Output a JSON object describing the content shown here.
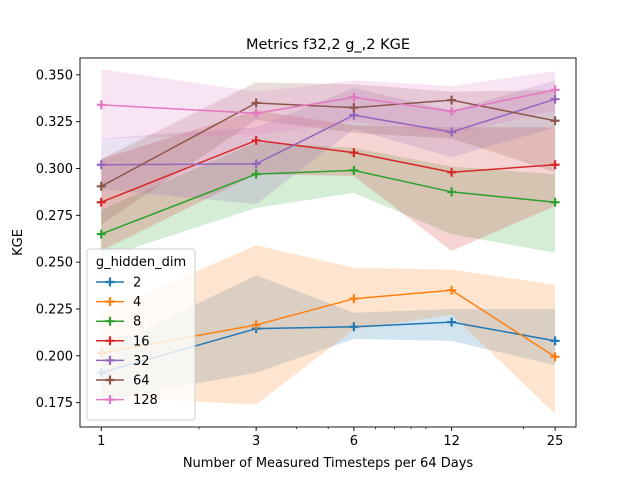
{
  "chart_data": {
    "type": "line",
    "title": "Metrics f32,2 g_,2 KGE",
    "xlabel": "Number of Measured Timesteps per 64 Days",
    "ylabel": "KGE",
    "x_scale": "log",
    "x": [
      1,
      3,
      6,
      12,
      25
    ],
    "x_tick_labels": [
      "1",
      "3",
      "6",
      "12",
      "25"
    ],
    "ylim": [
      0.162,
      0.359
    ],
    "y_ticks": [
      0.175,
      0.2,
      0.225,
      0.25,
      0.275,
      0.3,
      0.325,
      0.35
    ],
    "y_tick_labels": [
      "0.175",
      "0.200",
      "0.225",
      "0.250",
      "0.275",
      "0.300",
      "0.325",
      "0.350"
    ],
    "grid": false,
    "legend": {
      "title": "g_hidden_dim",
      "placement": "lower-left"
    },
    "series": [
      {
        "name": "2",
        "color": "#1f77b4",
        "values": [
          0.191,
          0.2145,
          0.2155,
          0.218,
          0.208
        ],
        "lower": [
          0.176,
          0.191,
          0.209,
          0.208,
          0.195
        ],
        "upper": [
          0.203,
          0.243,
          0.223,
          0.225,
          0.225
        ]
      },
      {
        "name": "4",
        "color": "#ff7f0e",
        "values": [
          0.2015,
          0.2165,
          0.2305,
          0.235,
          0.1995
        ],
        "lower": [
          0.178,
          0.174,
          0.214,
          0.222,
          0.169
        ],
        "upper": [
          0.223,
          0.259,
          0.247,
          0.246,
          0.238
        ]
      },
      {
        "name": "8",
        "color": "#2ca02c",
        "values": [
          0.265,
          0.297,
          0.299,
          0.2875,
          0.282
        ],
        "lower": [
          0.252,
          0.279,
          0.287,
          0.265,
          0.255
        ],
        "upper": [
          0.278,
          0.314,
          0.311,
          0.301,
          0.297
        ]
      },
      {
        "name": "16",
        "color": "#d62728",
        "values": [
          0.282,
          0.315,
          0.3085,
          0.298,
          0.302
        ],
        "lower": [
          0.256,
          0.297,
          0.296,
          0.256,
          0.28
        ],
        "upper": [
          0.305,
          0.331,
          0.323,
          0.322,
          0.322
        ]
      },
      {
        "name": "32",
        "color": "#9467bd",
        "values": [
          0.302,
          0.3025,
          0.3285,
          0.3195,
          0.337
        ],
        "lower": [
          0.289,
          0.281,
          0.321,
          0.306,
          0.322
        ],
        "upper": [
          0.316,
          0.322,
          0.343,
          0.331,
          0.347
        ]
      },
      {
        "name": "64",
        "color": "#8c564b",
        "values": [
          0.2905,
          0.335,
          0.3325,
          0.3365,
          0.3255
        ],
        "lower": [
          0.27,
          0.326,
          0.319,
          0.316,
          0.298
        ],
        "upper": [
          0.305,
          0.346,
          0.345,
          0.341,
          0.342
        ]
      },
      {
        "name": "128",
        "color": "#e377c2",
        "values": [
          0.334,
          0.3295,
          0.338,
          0.3305,
          0.342
        ],
        "lower": [
          0.316,
          0.318,
          0.325,
          0.318,
          0.331
        ],
        "upper": [
          0.353,
          0.341,
          0.347,
          0.344,
          0.352
        ]
      }
    ]
  }
}
